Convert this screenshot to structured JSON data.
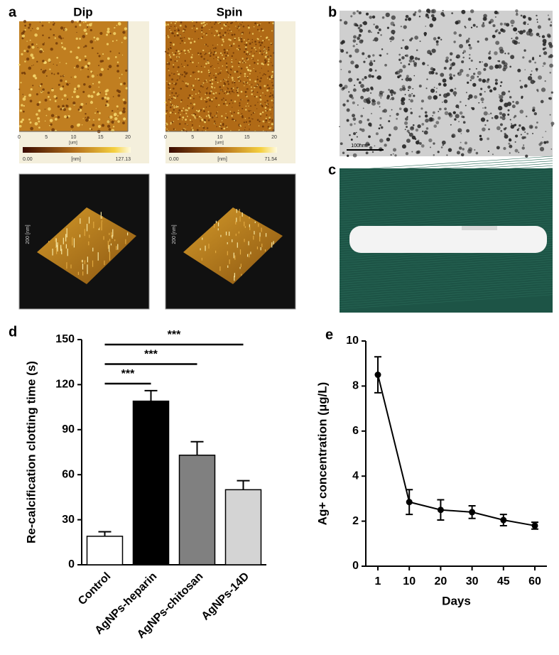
{
  "panel_labels": [
    "a",
    "b",
    "c",
    "d",
    "e"
  ],
  "afm": [
    {
      "title": "Dip",
      "axis_ticks": [
        "0",
        "5",
        "10",
        "15",
        "20"
      ],
      "axis_unit": "[um]",
      "scale_min": "0.00",
      "scale_unit": "[nm]",
      "scale_max": "127.13",
      "z_label": "200 [nm]"
    },
    {
      "title": "Spin",
      "axis_ticks": [
        "0",
        "5",
        "10",
        "15",
        "20"
      ],
      "axis_unit": "[um]",
      "scale_min": "0.00",
      "scale_unit": "[nm]",
      "scale_max": "71.54",
      "z_label": "200 [nm]"
    }
  ],
  "tem": {
    "scale_bar": "100nm"
  },
  "chart_data": [
    {
      "type": "bar",
      "y_label": "Re-calcification clotting time (s)",
      "categories": [
        "Control",
        "AgNPs-heparin",
        "AgNPs-chitosan",
        "AgNPs-14D"
      ],
      "values": [
        19,
        109,
        73,
        50
      ],
      "errors": [
        3,
        7,
        9,
        6
      ],
      "colors": [
        "#ffffff",
        "#000000",
        "#808080",
        "#d4d4d4"
      ],
      "ylim": [
        0,
        150
      ],
      "yticks": [
        0,
        30,
        60,
        90,
        120,
        150
      ],
      "annotations": [
        {
          "text": "***",
          "from": 0,
          "to": 1
        },
        {
          "text": "***",
          "from": 0,
          "to": 2
        },
        {
          "text": "***",
          "from": 0,
          "to": 3
        }
      ]
    },
    {
      "type": "line",
      "x_label": "Days",
      "y_label": "Ag+ concentration (μg/L)",
      "categories": [
        "1",
        "10",
        "20",
        "30",
        "45",
        "60"
      ],
      "values": [
        8.5,
        2.85,
        2.5,
        2.4,
        2.05,
        1.8
      ],
      "errors": [
        0.8,
        0.55,
        0.45,
        0.28,
        0.25,
        0.15
      ],
      "color": "#000000",
      "ylim": [
        0,
        10
      ],
      "yticks": [
        0,
        2,
        4,
        6,
        8,
        10
      ]
    }
  ]
}
